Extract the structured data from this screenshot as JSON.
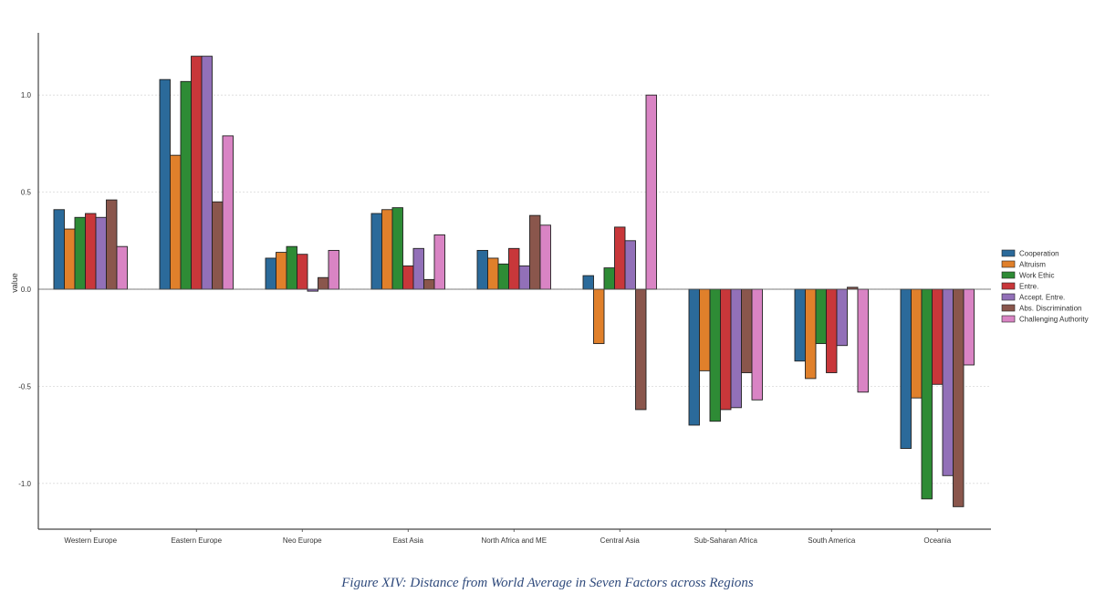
{
  "caption": "Figure XIV: Distance from World Average in Seven Factors across Regions",
  "chart_data": {
    "type": "bar",
    "title": "",
    "xlabel": "",
    "ylabel": "value",
    "ylim": [
      -1.24,
      1.32
    ],
    "yticks": [
      1.0,
      0.5,
      0.0,
      -0.5,
      -1.0
    ],
    "ytick_labels": [
      "1.0",
      "0.5",
      "0.0",
      "-0.5",
      "-1.0"
    ],
    "grid": true,
    "legend_position": "right",
    "categories": [
      "Western Europe",
      "Eastern Europe",
      "Neo Europe",
      "East Asia",
      "North Africa and ME",
      "Central Asia",
      "Sub-Saharan Africa",
      "South America",
      "Oceania"
    ],
    "series": [
      {
        "name": "Cooperation",
        "color": "#2b6a9a",
        "values": [
          0.41,
          1.08,
          0.16,
          0.39,
          0.2,
          0.07,
          -0.7,
          -0.37,
          -0.82
        ]
      },
      {
        "name": "Altruism",
        "color": "#e0802b",
        "values": [
          0.31,
          0.69,
          0.19,
          0.41,
          0.16,
          -0.28,
          -0.42,
          -0.46,
          -0.56
        ]
      },
      {
        "name": "Work Ethic",
        "color": "#2e8b35",
        "values": [
          0.37,
          1.07,
          0.22,
          0.42,
          0.13,
          0.11,
          -0.68,
          -0.28,
          -1.08
        ]
      },
      {
        "name": "Entre.",
        "color": "#c8373a",
        "values": [
          0.39,
          1.2,
          0.18,
          0.12,
          0.21,
          0.32,
          -0.62,
          -0.43,
          -0.49
        ]
      },
      {
        "name": "Accept. Entre.",
        "color": "#9270b8",
        "values": [
          0.37,
          1.2,
          -0.01,
          0.21,
          0.12,
          0.25,
          -0.61,
          -0.29,
          -0.96
        ]
      },
      {
        "name": "Abs. Discrimination",
        "color": "#8a564c",
        "values": [
          0.46,
          0.45,
          0.06,
          0.05,
          0.38,
          -0.62,
          -0.43,
          0.01,
          -1.12
        ]
      },
      {
        "name": "Challenging Authority",
        "color": "#d984c4",
        "values": [
          0.22,
          0.79,
          0.2,
          0.28,
          0.33,
          1.0,
          -0.57,
          -0.53,
          -0.39
        ]
      }
    ]
  }
}
